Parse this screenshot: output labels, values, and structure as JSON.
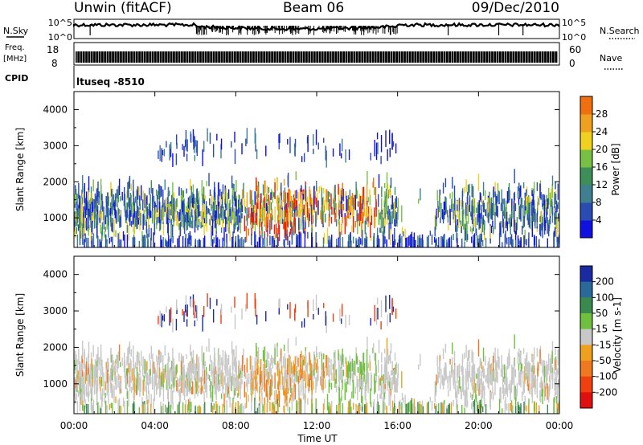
{
  "header": {
    "title": "Unwin (fitACF)",
    "beam": "Beam 06",
    "date": "09/Dec/2010"
  },
  "top_panels": {
    "nsky_label": "N.Sky",
    "nsearch_label": "N.Search",
    "noise_ticks": [
      "10^5",
      "10^0"
    ],
    "freq_label_1": "Freq.",
    "freq_label_2": "[MHz]",
    "freq_ticks": [
      "18",
      "8"
    ],
    "nave_label": "Nave",
    "nave_ticks": [
      "60",
      "0"
    ],
    "cpid_label": "CPID",
    "cpid_value": "ltuseq -8510"
  },
  "colors": {
    "power": [
      "#1010e0",
      "#2a4cb0",
      "#3f7f8f",
      "#3e8e5a",
      "#78c043",
      "#f0d020",
      "#f0a020",
      "#f07010",
      "#e02010"
    ],
    "velocity": [
      "#e01010",
      "#f04010",
      "#f07820",
      "#f0a020",
      "#c8c8c8",
      "#70c040",
      "#3a8a50",
      "#2a6a9a",
      "#1a2aa0"
    ]
  },
  "chart_data": [
    {
      "type": "heatmap",
      "name_in_figure": "power",
      "xlabel": "",
      "ylabel": "Slant Range [km]",
      "x_range_hours": [
        0,
        24
      ],
      "ylim": [
        180,
        4500
      ],
      "y_ticks": [
        "1000",
        "2000",
        "3000",
        "4000"
      ],
      "colorbar": {
        "label": "Power [dB]",
        "ticks": [
          "4",
          "8",
          "12",
          "16",
          "20",
          "24",
          "28"
        ],
        "range": [
          0,
          30
        ]
      },
      "features": [
        {
          "kind": "scatter band",
          "start": "00:00",
          "end": "16:00",
          "range_km": [
            400,
            2400
          ],
          "power_db": "4-16"
        },
        {
          "kind": "strong echo",
          "start": "08:30",
          "end": "15:00",
          "range_km": [
            500,
            2000
          ],
          "power_db": "20-30"
        },
        {
          "kind": "scatter band",
          "start": "18:00",
          "end": "24:00",
          "range_km": [
            500,
            2200
          ],
          "power_db": "4-16"
        }
      ]
    },
    {
      "type": "heatmap",
      "name_in_figure": "velocity",
      "xlabel": "Time UT",
      "ylabel": "Slant Range [km]",
      "x_range_hours": [
        0,
        24
      ],
      "x_ticks": [
        "00:00",
        "04:00",
        "08:00",
        "12:00",
        "16:00",
        "20:00",
        "00:00"
      ],
      "ylim": [
        180,
        4500
      ],
      "y_ticks": [
        "1000",
        "2000",
        "3000",
        "4000"
      ],
      "colorbar": {
        "label": "Velocity [m s-1]",
        "ticks": [
          "200",
          "100",
          "50",
          "15",
          "-15",
          "-50",
          "-100",
          "-200"
        ]
      },
      "features": [
        {
          "kind": "near-zero velocity",
          "start": "00:00",
          "end": "16:00",
          "range_km": [
            400,
            2400
          ],
          "velocity_ms": "-15 to 15"
        },
        {
          "kind": "negative velocity",
          "start": "08:30",
          "end": "14:00",
          "range_km": [
            500,
            1800
          ],
          "velocity_ms": "-50 to -15"
        },
        {
          "kind": "positive velocity",
          "start": "11:00",
          "end": "15:00",
          "range_km": [
            1300,
            2300
          ],
          "velocity_ms": "15 to 50"
        }
      ]
    }
  ]
}
